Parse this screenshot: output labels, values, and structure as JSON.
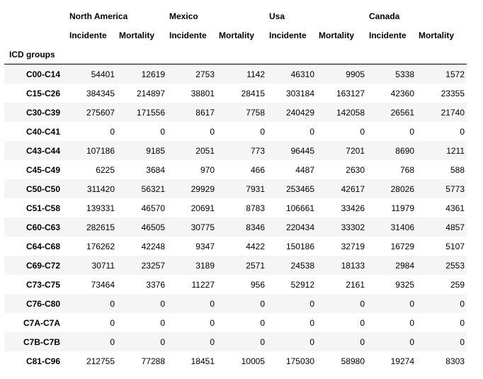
{
  "table": {
    "index_name": "ICD groups",
    "groups": [
      "North America",
      "Mexico",
      "Usa",
      "Canada"
    ],
    "subcolumns": [
      "Incidente",
      "Mortality",
      "Incidente",
      "Mortality",
      "Incidente",
      "Mortality",
      "Incidente",
      "Mortality"
    ],
    "rows": [
      {
        "label": "C00-C14",
        "values": [
          "54401",
          "12619",
          "2753",
          "1142",
          "46310",
          "9905",
          "5338",
          "1572"
        ]
      },
      {
        "label": "C15-C26",
        "values": [
          "384345",
          "214897",
          "38801",
          "28415",
          "303184",
          "163127",
          "42360",
          "23355"
        ]
      },
      {
        "label": "C30-C39",
        "values": [
          "275607",
          "171556",
          "8617",
          "7758",
          "240429",
          "142058",
          "26561",
          "21740"
        ]
      },
      {
        "label": "C40-C41",
        "values": [
          "0",
          "0",
          "0",
          "0",
          "0",
          "0",
          "0",
          "0"
        ]
      },
      {
        "label": "C43-C44",
        "values": [
          "107186",
          "9185",
          "2051",
          "773",
          "96445",
          "7201",
          "8690",
          "1211"
        ]
      },
      {
        "label": "C45-C49",
        "values": [
          "6225",
          "3684",
          "970",
          "466",
          "4487",
          "2630",
          "768",
          "588"
        ]
      },
      {
        "label": "C50-C50",
        "values": [
          "311420",
          "56321",
          "29929",
          "7931",
          "253465",
          "42617",
          "28026",
          "5773"
        ]
      },
      {
        "label": "C51-C58",
        "values": [
          "139331",
          "46570",
          "20691",
          "8783",
          "106661",
          "33426",
          "11979",
          "4361"
        ]
      },
      {
        "label": "C60-C63",
        "values": [
          "282615",
          "46505",
          "30775",
          "8346",
          "220434",
          "33302",
          "31406",
          "4857"
        ]
      },
      {
        "label": "C64-C68",
        "values": [
          "176262",
          "42248",
          "9347",
          "4422",
          "150186",
          "32719",
          "16729",
          "5107"
        ]
      },
      {
        "label": "C69-C72",
        "values": [
          "30711",
          "23257",
          "3189",
          "2571",
          "24538",
          "18133",
          "2984",
          "2553"
        ]
      },
      {
        "label": "C73-C75",
        "values": [
          "73464",
          "3376",
          "11227",
          "956",
          "52912",
          "2161",
          "9325",
          "259"
        ]
      },
      {
        "label": "C76-C80",
        "values": [
          "0",
          "0",
          "0",
          "0",
          "0",
          "0",
          "0",
          "0"
        ]
      },
      {
        "label": "C7A-C7A",
        "values": [
          "0",
          "0",
          "0",
          "0",
          "0",
          "0",
          "0",
          "0"
        ]
      },
      {
        "label": "C7B-C7B",
        "values": [
          "0",
          "0",
          "0",
          "0",
          "0",
          "0",
          "0",
          "0"
        ]
      },
      {
        "label": "C81-C96",
        "values": [
          "212755",
          "77288",
          "18451",
          "10005",
          "175030",
          "58980",
          "19274",
          "8303"
        ]
      }
    ]
  }
}
